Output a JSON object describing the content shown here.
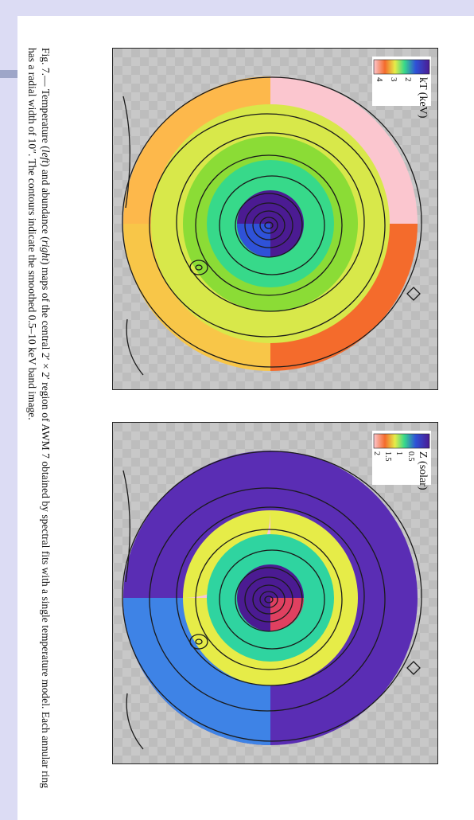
{
  "figure": {
    "caption_parts": {
      "lead": "Fig. 7.— Temperature (",
      "left_word": "left",
      "mid": ") and abundance (",
      "right_word": "right",
      "rest": ") maps of the central 2′ × 2′ region of AWM 7 obtained by spectral fits with a single temperature model. Each annular ring has a radial width of 10′′. The contours indicate the smoothed 0.5–10 keV band image."
    },
    "temperature_panel": {
      "colorbar_title": "kT (keV)",
      "ticks": [
        "2",
        "3",
        "4"
      ],
      "region_colors": {
        "core": "#4b1b92",
        "core_quadrant": "#2f52d8",
        "ring2": "#37d98a",
        "ring3": "#8bdc36",
        "ring4_top": "#d8e84a",
        "outer_top_left": "#fbc6cf",
        "outer_top_right": "#fdb84b",
        "outer_bottom_left": "#f46b2c",
        "outer_bottom_right": "#f8c648"
      }
    },
    "abundance_panel": {
      "colorbar_title": "Z (solar)",
      "ticks": [
        "0.5",
        "1",
        "1.5",
        "2"
      ],
      "region_colors": {
        "core": "#4b1b92",
        "core_quadrant": "#e04060",
        "ring2": "#2fd4a0",
        "ring3": "#e6ec48",
        "outer_left": "#5a2db4",
        "outer_right": "#5a2db4",
        "outer_bottom_right": "#3e83e6",
        "pink_patch": "#f6c6d8"
      }
    }
  }
}
